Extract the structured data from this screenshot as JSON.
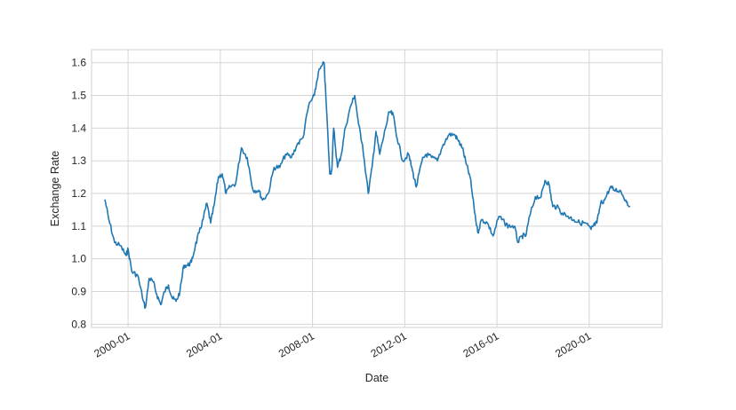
{
  "chart_data": {
    "type": "line",
    "title": "",
    "xlabel": "Date",
    "ylabel": "Exchange Rate",
    "x_range": [
      "1998-06",
      "2023-03"
    ],
    "ylim": [
      0.79,
      1.64
    ],
    "grid": true,
    "legend": "none",
    "x_ticks": [
      "2000-01",
      "2004-01",
      "2008-01",
      "2012-01",
      "2016-01",
      "2020-01"
    ],
    "y_ticks": [
      "0.8",
      "0.9",
      "1.0",
      "1.1",
      "1.2",
      "1.3",
      "1.4",
      "1.5",
      "1.6"
    ],
    "series": [
      {
        "color": "#1f77b4",
        "x": [
          "1999-01",
          "1999-03",
          "1999-06",
          "1999-09",
          "1999-12",
          "2000-01",
          "2000-03",
          "2000-06",
          "2000-09",
          "2000-10",
          "2000-12",
          "2001-02",
          "2001-04",
          "2001-06",
          "2001-08",
          "2001-10",
          "2001-12",
          "2002-02",
          "2002-04",
          "2002-06",
          "2002-08",
          "2002-10",
          "2002-12",
          "2003-02",
          "2003-04",
          "2003-06",
          "2003-08",
          "2003-10",
          "2003-12",
          "2004-02",
          "2004-04",
          "2004-06",
          "2004-09",
          "2004-12",
          "2005-03",
          "2005-06",
          "2005-09",
          "2005-11",
          "2006-02",
          "2006-05",
          "2006-08",
          "2006-11",
          "2007-02",
          "2007-05",
          "2007-08",
          "2007-11",
          "2008-02",
          "2008-04",
          "2008-07",
          "2008-08",
          "2008-10",
          "2008-11",
          "2008-12",
          "2009-02",
          "2009-04",
          "2009-06",
          "2009-09",
          "2009-11",
          "2010-01",
          "2010-03",
          "2010-06",
          "2010-08",
          "2010-10",
          "2010-12",
          "2011-03",
          "2011-05",
          "2011-07",
          "2011-09",
          "2011-12",
          "2012-03",
          "2012-05",
          "2012-07",
          "2012-10",
          "2012-12",
          "2013-03",
          "2013-06",
          "2013-09",
          "2013-12",
          "2014-03",
          "2014-05",
          "2014-07",
          "2014-09",
          "2014-11",
          "2015-01",
          "2015-03",
          "2015-05",
          "2015-08",
          "2015-11",
          "2016-02",
          "2016-05",
          "2016-07",
          "2016-10",
          "2016-12",
          "2017-02",
          "2017-04",
          "2017-06",
          "2017-09",
          "2017-12",
          "2018-02",
          "2018-04",
          "2018-06",
          "2018-08",
          "2018-11",
          "2019-02",
          "2019-05",
          "2019-08",
          "2019-11",
          "2020-02",
          "2020-03",
          "2020-05",
          "2020-07",
          "2020-09",
          "2020-12",
          "2021-02",
          "2021-05",
          "2021-08",
          "2021-10"
        ],
        "y": [
          1.18,
          1.12,
          1.05,
          1.04,
          1.01,
          1.03,
          0.96,
          0.95,
          0.87,
          0.85,
          0.94,
          0.93,
          0.89,
          0.86,
          0.9,
          0.92,
          0.88,
          0.87,
          0.9,
          0.98,
          0.98,
          0.99,
          1.04,
          1.08,
          1.12,
          1.17,
          1.11,
          1.17,
          1.25,
          1.26,
          1.2,
          1.22,
          1.23,
          1.34,
          1.31,
          1.21,
          1.21,
          1.18,
          1.2,
          1.28,
          1.28,
          1.32,
          1.31,
          1.35,
          1.37,
          1.47,
          1.5,
          1.57,
          1.6,
          1.49,
          1.26,
          1.27,
          1.4,
          1.28,
          1.32,
          1.4,
          1.47,
          1.5,
          1.41,
          1.35,
          1.2,
          1.28,
          1.39,
          1.32,
          1.4,
          1.45,
          1.44,
          1.37,
          1.3,
          1.32,
          1.27,
          1.22,
          1.3,
          1.32,
          1.31,
          1.3,
          1.35,
          1.38,
          1.38,
          1.36,
          1.34,
          1.29,
          1.25,
          1.16,
          1.08,
          1.12,
          1.11,
          1.07,
          1.13,
          1.11,
          1.1,
          1.1,
          1.05,
          1.07,
          1.07,
          1.13,
          1.19,
          1.19,
          1.24,
          1.23,
          1.16,
          1.16,
          1.14,
          1.13,
          1.12,
          1.11,
          1.11,
          1.09,
          1.1,
          1.11,
          1.17,
          1.18,
          1.22,
          1.21,
          1.21,
          1.18,
          1.16
        ]
      }
    ]
  }
}
